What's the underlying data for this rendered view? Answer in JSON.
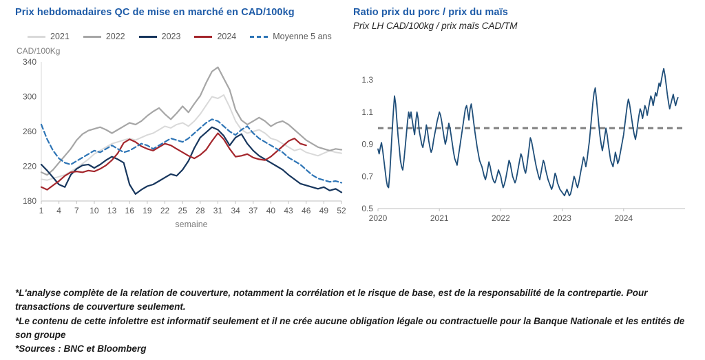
{
  "colors": {
    "title_blue": "#1f5ca8",
    "axis_text": "#595959",
    "axis_muted": "#808080",
    "axis_line": "#bfbfbf",
    "reference_gray": "#808080"
  },
  "charts": {
    "left": {
      "title": "Prix hebdomadaires QC de mise en marché en CAD/100kg",
      "ylabel": "CAD/100Kg",
      "xlabel": "semaine"
    },
    "right": {
      "title": "Ratio prix du porc / prix du maïs",
      "subtitle": "Prix LH CAD/100kg / prix maïs CAD/TM"
    }
  },
  "footnotes": [
    "*L'analyse complète de la relation de couverture, notamment la corrélation et le risque de base, est de la responsabilité de la contrepartie. Pour transactions de couverture seulement.",
    "*Le contenu de cette infolettre est informatif seulement et il ne crée aucune obligation légale ou contractuelle pour la Banque Nationale et les entités de son groupe",
    "*Sources : BNC et Bloomberg"
  ],
  "chart_data": [
    {
      "id": "weekly-price",
      "type": "line",
      "title": "Prix hebdomadaires QC de mise en marché en CAD/100kg",
      "xlabel": "semaine",
      "ylabel": "CAD/100Kg",
      "xlim": [
        1,
        52
      ],
      "ylim": [
        180,
        340
      ],
      "x_ticks": [
        1,
        4,
        7,
        10,
        13,
        16,
        19,
        22,
        25,
        28,
        31,
        34,
        37,
        40,
        43,
        46,
        49,
        52
      ],
      "y_ticks": [
        180,
        220,
        260,
        300,
        340
      ],
      "grid": false,
      "legend_position": "top",
      "series": [
        {
          "name": "2021",
          "color": "#d9d9d9",
          "dash": false,
          "width": 2,
          "values": [
            205,
            204,
            206,
            208,
            210,
            214,
            218,
            223,
            228,
            234,
            238,
            242,
            246,
            248,
            250,
            252,
            250,
            253,
            256,
            258,
            262,
            266,
            264,
            268,
            270,
            266,
            272,
            280,
            290,
            300,
            298,
            302,
            288,
            272,
            262,
            258,
            260,
            262,
            258,
            252,
            250,
            246,
            242,
            238,
            240,
            236,
            234,
            232,
            235,
            238,
            236,
            235
          ]
        },
        {
          "name": "2022",
          "color": "#a6a6a6",
          "dash": false,
          "width": 2.2,
          "values": [
            213,
            210,
            216,
            224,
            232,
            240,
            250,
            257,
            261,
            263,
            265,
            262,
            258,
            262,
            266,
            270,
            268,
            272,
            278,
            283,
            287,
            280,
            274,
            281,
            289,
            282,
            292,
            301,
            316,
            329,
            334,
            321,
            308,
            285,
            273,
            268,
            272,
            276,
            272,
            266,
            270,
            272,
            268,
            262,
            256,
            250,
            246,
            242,
            240,
            238,
            240,
            239
          ]
        },
        {
          "name": "2023",
          "color": "#17365d",
          "dash": false,
          "width": 2.2,
          "values": [
            222,
            215,
            207,
            199,
            196,
            210,
            217,
            221,
            222,
            218,
            222,
            227,
            231,
            228,
            224,
            199,
            188,
            193,
            197,
            199,
            203,
            207,
            211,
            209,
            216,
            226,
            241,
            253,
            259,
            265,
            262,
            255,
            244,
            253,
            257,
            246,
            238,
            232,
            228,
            224,
            220,
            216,
            210,
            205,
            200,
            198,
            196,
            194,
            196,
            192,
            194,
            190
          ]
        },
        {
          "name": "2024",
          "color": "#a4262c",
          "dash": false,
          "width": 2.2,
          "values": [
            196,
            193,
            198,
            203,
            209,
            213,
            214,
            213,
            215,
            214,
            217,
            221,
            227,
            235,
            247,
            251,
            248,
            243,
            240,
            238,
            242,
            246,
            244,
            240,
            236,
            232,
            229,
            233,
            239,
            249,
            258,
            251,
            240,
            231,
            232,
            234,
            230,
            228,
            227,
            231,
            237,
            243,
            249,
            252,
            246,
            244
          ]
        },
        {
          "name": "Moyenne 5 ans",
          "color": "#2e75b6",
          "dash": true,
          "width": 2.2,
          "values": [
            268,
            251,
            238,
            229,
            224,
            222,
            226,
            230,
            234,
            238,
            236,
            240,
            244,
            240,
            236,
            238,
            242,
            246,
            244,
            240,
            244,
            248,
            252,
            250,
            248,
            252,
            258,
            264,
            270,
            274,
            272,
            266,
            260,
            256,
            262,
            266,
            258,
            252,
            248,
            244,
            240,
            236,
            230,
            226,
            222,
            216,
            210,
            206,
            204,
            202,
            203,
            201
          ]
        }
      ]
    },
    {
      "id": "hog-corn-ratio",
      "type": "line",
      "title": "Ratio prix du porc / prix du maïs",
      "subtitle": "Prix LH CAD/100kg / prix maïs CAD/TM",
      "xlim": [
        2020,
        2025
      ],
      "ylim": [
        0.5,
        1.45
      ],
      "x_ticks": [
        2020,
        2021,
        2022,
        2023,
        2024
      ],
      "y_ticks": [
        0.5,
        0.7,
        0.9,
        1.1,
        1.3
      ],
      "grid": false,
      "x_start": 2020,
      "x_step": 0.019231,
      "reference": {
        "value": 1.0,
        "color": "#808080",
        "dash": true,
        "width": 3
      },
      "series": [
        {
          "name": "Ratio porc/maïs",
          "color": "#1f4e79",
          "dash": false,
          "width": 1.8,
          "values": [
            0.87,
            0.84,
            0.88,
            0.91,
            0.86,
            0.8,
            0.74,
            0.68,
            0.64,
            0.63,
            0.72,
            0.85,
            0.98,
            1.1,
            1.2,
            1.15,
            1.05,
            0.95,
            0.88,
            0.8,
            0.76,
            0.74,
            0.8,
            0.88,
            0.96,
            1.04,
            1.1,
            1.06,
            1.1,
            1.05,
            1.0,
            0.96,
            1.04,
            1.1,
            1.06,
            0.98,
            0.94,
            0.9,
            0.88,
            0.92,
            0.96,
            1.02,
            0.98,
            0.92,
            0.88,
            0.85,
            0.87,
            0.92,
            0.96,
            1.0,
            1.04,
            1.07,
            1.1,
            1.08,
            1.04,
            0.99,
            0.94,
            0.9,
            0.93,
            0.98,
            1.03,
            1.0,
            0.95,
            0.9,
            0.85,
            0.81,
            0.79,
            0.77,
            0.82,
            0.87,
            0.92,
            0.97,
            1.02,
            1.07,
            1.12,
            1.14,
            1.1,
            1.05,
            1.12,
            1.15,
            1.1,
            1.04,
            0.98,
            0.93,
            0.88,
            0.84,
            0.8,
            0.78,
            0.76,
            0.73,
            0.7,
            0.68,
            0.71,
            0.75,
            0.79,
            0.76,
            0.72,
            0.69,
            0.67,
            0.66,
            0.68,
            0.71,
            0.74,
            0.72,
            0.7,
            0.66,
            0.63,
            0.65,
            0.68,
            0.72,
            0.76,
            0.8,
            0.78,
            0.74,
            0.7,
            0.68,
            0.66,
            0.68,
            0.72,
            0.76,
            0.8,
            0.84,
            0.82,
            0.78,
            0.74,
            0.72,
            0.76,
            0.82,
            0.88,
            0.94,
            0.92,
            0.88,
            0.84,
            0.8,
            0.76,
            0.73,
            0.7,
            0.68,
            0.72,
            0.76,
            0.8,
            0.78,
            0.74,
            0.71,
            0.68,
            0.66,
            0.64,
            0.62,
            0.64,
            0.68,
            0.72,
            0.7,
            0.66,
            0.64,
            0.62,
            0.61,
            0.6,
            0.59,
            0.58,
            0.6,
            0.62,
            0.6,
            0.58,
            0.59,
            0.62,
            0.66,
            0.7,
            0.68,
            0.65,
            0.63,
            0.66,
            0.7,
            0.74,
            0.78,
            0.82,
            0.8,
            0.76,
            0.8,
            0.86,
            0.92,
            1.0,
            1.08,
            1.16,
            1.22,
            1.25,
            1.18,
            1.1,
            1.02,
            0.95,
            0.9,
            0.86,
            0.9,
            0.95,
            1.0,
            0.96,
            0.9,
            0.85,
            0.8,
            0.78,
            0.76,
            0.8,
            0.85,
            0.82,
            0.78,
            0.8,
            0.84,
            0.88,
            0.92,
            0.96,
            1.02,
            1.08,
            1.14,
            1.18,
            1.15,
            1.1,
            1.05,
            1.0,
            0.96,
            0.93,
            0.97,
            1.03,
            1.08,
            1.12,
            1.1,
            1.06,
            1.1,
            1.14,
            1.12,
            1.08,
            1.12,
            1.16,
            1.2,
            1.18,
            1.14,
            1.18,
            1.22,
            1.2,
            1.24,
            1.28,
            1.26,
            1.3,
            1.34,
            1.37,
            1.33,
            1.27,
            1.21,
            1.16,
            1.12,
            1.15,
            1.18,
            1.21,
            1.17,
            1.14,
            1.17,
            1.19
          ]
        }
      ]
    }
  ]
}
